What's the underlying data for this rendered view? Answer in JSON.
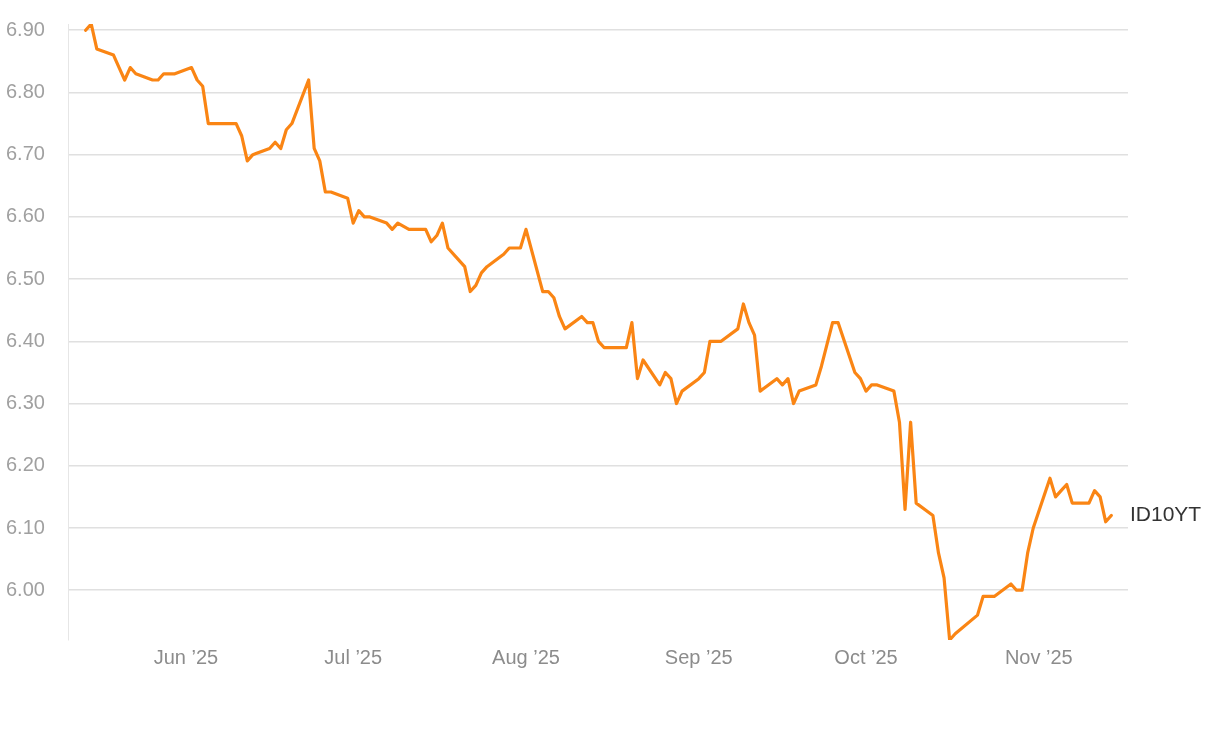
{
  "chart_data": {
    "type": "line",
    "xlim": [
      "2025-05-11",
      "2025-11-17"
    ],
    "ylim": [
      5.92,
      6.91
    ],
    "xticks": [
      {
        "value": "2025-06-01",
        "label": "Jun ’25"
      },
      {
        "value": "2025-07-01",
        "label": "Jul ’25"
      },
      {
        "value": "2025-08-01",
        "label": "Aug ’25"
      },
      {
        "value": "2025-09-01",
        "label": "Sep ’25"
      },
      {
        "value": "2025-10-01",
        "label": "Oct ’25"
      },
      {
        "value": "2025-11-01",
        "label": "Nov ’25"
      }
    ],
    "yticks": [
      {
        "value": 6,
        "label": "6.00"
      },
      {
        "value": 6.1,
        "label": "6.10"
      },
      {
        "value": 6.2,
        "label": "6.20"
      },
      {
        "value": 6.3,
        "label": "6.30"
      },
      {
        "value": 6.4,
        "label": "6.40"
      },
      {
        "value": 6.5,
        "label": "6.50"
      },
      {
        "value": 6.6,
        "label": "6.60"
      },
      {
        "value": 6.7,
        "label": "6.70"
      },
      {
        "value": 6.8,
        "label": "6.80"
      },
      {
        "value": 6.9,
        "label": "6.90"
      }
    ],
    "grid": "y",
    "series": [
      {
        "name": "ID10YT",
        "color": "#fa8514",
        "x": [
          "2025-05-14",
          "2025-05-15",
          "2025-05-16",
          "2025-05-19",
          "2025-05-20",
          "2025-05-21",
          "2025-05-22",
          "2025-05-23",
          "2025-05-26",
          "2025-05-27",
          "2025-05-28",
          "2025-05-30",
          "2025-06-02",
          "2025-06-03",
          "2025-06-04",
          "2025-06-05",
          "2025-06-10",
          "2025-06-11",
          "2025-06-12",
          "2025-06-13",
          "2025-06-16",
          "2025-06-17",
          "2025-06-18",
          "2025-06-19",
          "2025-06-20",
          "2025-06-23",
          "2025-06-24",
          "2025-06-25",
          "2025-06-26",
          "2025-06-27",
          "2025-06-30",
          "2025-07-01",
          "2025-07-02",
          "2025-07-03",
          "2025-07-04",
          "2025-07-07",
          "2025-07-08",
          "2025-07-09",
          "2025-07-11",
          "2025-07-14",
          "2025-07-15",
          "2025-07-16",
          "2025-07-17",
          "2025-07-18",
          "2025-07-21",
          "2025-07-22",
          "2025-07-23",
          "2025-07-24",
          "2025-07-25",
          "2025-07-28",
          "2025-07-29",
          "2025-07-31",
          "2025-08-01",
          "2025-08-04",
          "2025-08-05",
          "2025-08-06",
          "2025-08-07",
          "2025-08-08",
          "2025-08-11",
          "2025-08-12",
          "2025-08-13",
          "2025-08-14",
          "2025-08-15",
          "2025-08-19",
          "2025-08-20",
          "2025-08-21",
          "2025-08-22",
          "2025-08-25",
          "2025-08-26",
          "2025-08-27",
          "2025-08-28",
          "2025-08-29",
          "2025-09-01",
          "2025-09-02",
          "2025-09-03",
          "2025-09-05",
          "2025-09-08",
          "2025-09-09",
          "2025-09-10",
          "2025-09-11",
          "2025-09-12",
          "2025-09-15",
          "2025-09-16",
          "2025-09-17",
          "2025-09-18",
          "2025-09-19",
          "2025-09-22",
          "2025-09-23",
          "2025-09-25",
          "2025-09-26",
          "2025-09-29",
          "2025-09-30",
          "2025-10-01",
          "2025-10-02",
          "2025-10-03",
          "2025-10-06",
          "2025-10-07",
          "2025-10-08",
          "2025-10-09",
          "2025-10-10",
          "2025-10-13",
          "2025-10-14",
          "2025-10-15",
          "2025-10-16",
          "2025-10-17",
          "2025-10-21",
          "2025-10-22",
          "2025-10-24",
          "2025-10-27",
          "2025-10-28",
          "2025-10-29",
          "2025-10-30",
          "2025-10-31",
          "2025-11-03",
          "2025-11-04",
          "2025-11-05",
          "2025-11-06",
          "2025-11-07",
          "2025-11-10",
          "2025-11-11",
          "2025-11-12",
          "2025-11-13",
          "2025-11-14"
        ],
        "values": [
          6.9,
          6.91,
          6.87,
          6.86,
          6.84,
          6.82,
          6.84,
          6.83,
          6.82,
          6.82,
          6.83,
          6.83,
          6.84,
          6.82,
          6.81,
          6.75,
          6.75,
          6.73,
          6.69,
          6.7,
          6.71,
          6.72,
          6.71,
          6.74,
          6.75,
          6.82,
          6.71,
          6.69,
          6.64,
          6.64,
          6.63,
          6.59,
          6.61,
          6.6,
          6.6,
          6.59,
          6.58,
          6.59,
          6.58,
          6.58,
          6.56,
          6.57,
          6.59,
          6.55,
          6.52,
          6.48,
          6.49,
          6.51,
          6.52,
          6.54,
          6.55,
          6.55,
          6.58,
          6.48,
          6.48,
          6.47,
          6.44,
          6.42,
          6.44,
          6.43,
          6.43,
          6.4,
          6.39,
          6.39,
          6.43,
          6.34,
          6.37,
          6.33,
          6.35,
          6.34,
          6.3,
          6.32,
          6.34,
          6.35,
          6.4,
          6.4,
          6.42,
          6.46,
          6.43,
          6.41,
          6.32,
          6.34,
          6.33,
          6.34,
          6.3,
          6.32,
          6.33,
          6.36,
          6.43,
          6.43,
          6.35,
          6.34,
          6.32,
          6.33,
          6.33,
          6.32,
          6.27,
          6.13,
          6.27,
          6.14,
          6.12,
          6.06,
          6.02,
          5.92,
          5.93,
          5.96,
          5.99,
          5.99,
          6.01,
          6.0,
          6.0,
          6.06,
          6.1,
          6.18,
          6.15,
          6.16,
          6.17,
          6.14,
          6.14,
          6.16,
          6.15,
          6.11,
          6.12
        ]
      }
    ]
  }
}
